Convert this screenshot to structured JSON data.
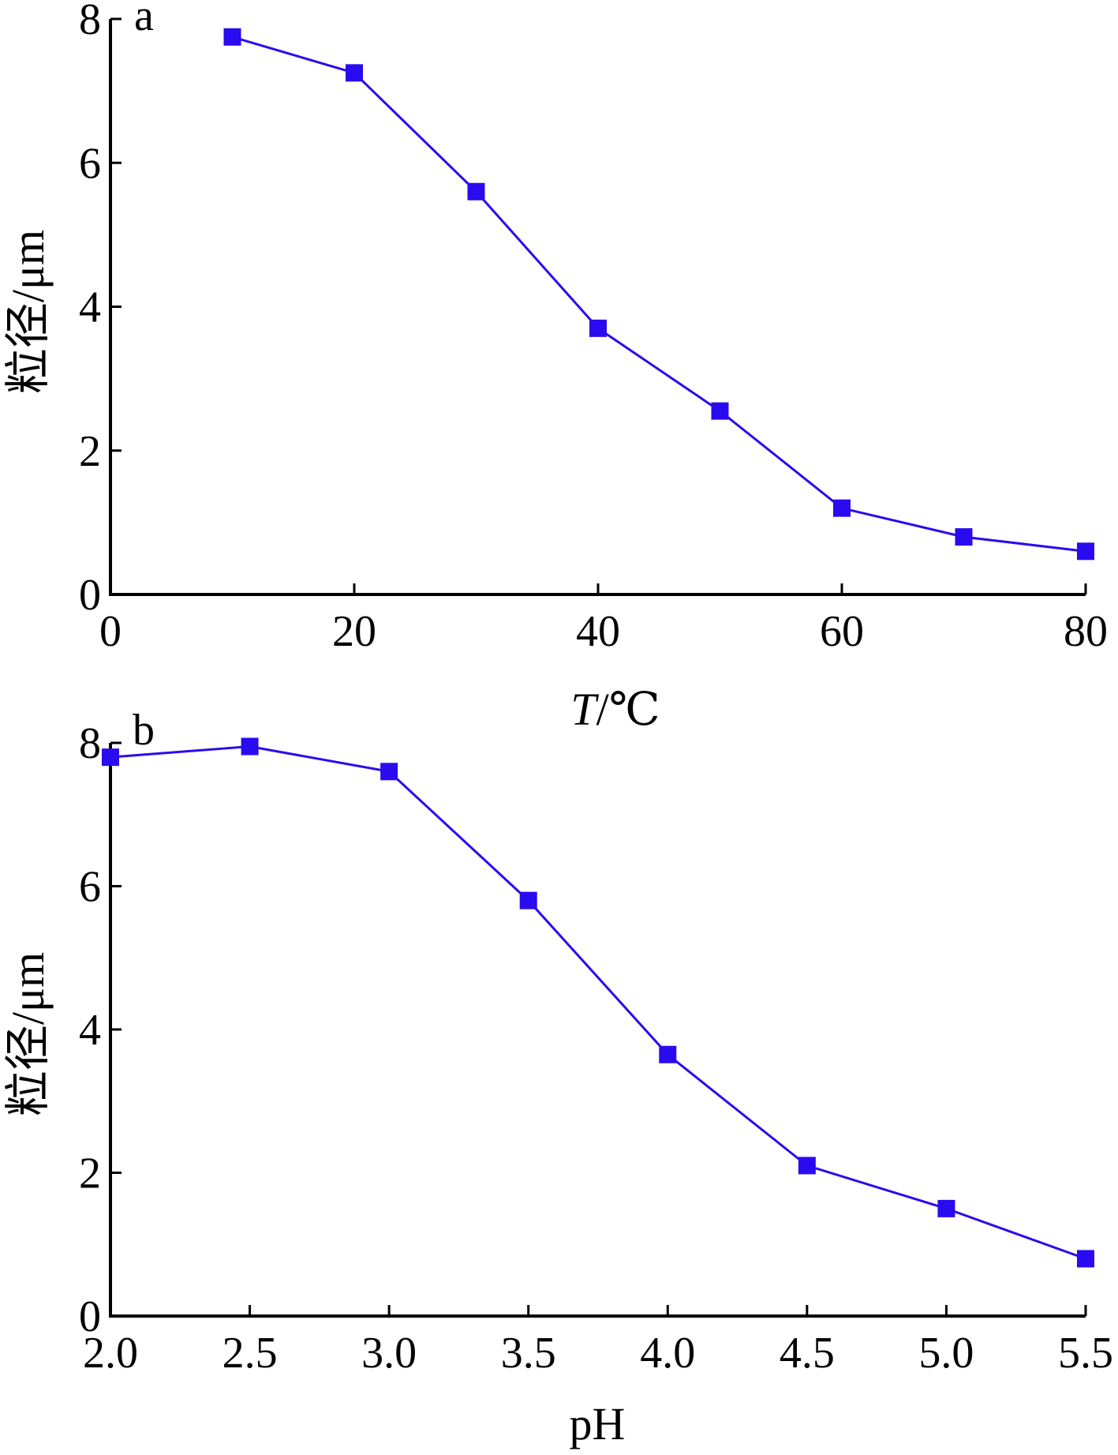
{
  "chart_data": [
    {
      "type": "line",
      "panel_label": "a",
      "xlabel": "T/℃",
      "xlabel_parts": {
        "italic": "T",
        "rest": "/℃"
      },
      "ylabel": "粒径/μm",
      "xlim": [
        0,
        80
      ],
      "ylim": [
        0,
        8
      ],
      "xticks": [
        0,
        20,
        40,
        60,
        80
      ],
      "xtick_labels": [
        "0",
        "20",
        "40",
        "60",
        "80"
      ],
      "yticks": [
        0,
        2,
        4,
        6,
        8
      ],
      "ytick_labels": [
        "0",
        "2",
        "4",
        "6",
        "8"
      ],
      "grid": false,
      "series": [
        {
          "color": "#2a0bef",
          "marker": "square",
          "x": [
            10,
            20,
            30,
            40,
            50,
            60,
            70,
            80
          ],
          "y": [
            7.75,
            7.25,
            5.6,
            3.7,
            2.55,
            1.2,
            0.8,
            0.6
          ]
        }
      ]
    },
    {
      "type": "line",
      "panel_label": "b",
      "xlabel": "pH",
      "ylabel": "粒径/μm",
      "xlim": [
        2.0,
        5.5
      ],
      "ylim": [
        0,
        8
      ],
      "xticks": [
        2.0,
        2.5,
        3.0,
        3.5,
        4.0,
        4.5,
        5.0,
        5.5
      ],
      "xtick_labels": [
        "2.0",
        "2.5",
        "3.0",
        "3.5",
        "4.0",
        "4.5",
        "5.0",
        "5.5"
      ],
      "yticks": [
        0,
        2,
        4,
        6,
        8
      ],
      "ytick_labels": [
        "0",
        "2",
        "4",
        "6",
        "8"
      ],
      "grid": false,
      "series": [
        {
          "color": "#2a0bef",
          "marker": "square",
          "x": [
            2.0,
            2.5,
            3.0,
            3.5,
            4.0,
            4.5,
            5.0,
            5.5
          ],
          "y": [
            7.8,
            7.95,
            7.6,
            5.8,
            3.65,
            2.1,
            1.5,
            0.8
          ]
        }
      ]
    }
  ]
}
